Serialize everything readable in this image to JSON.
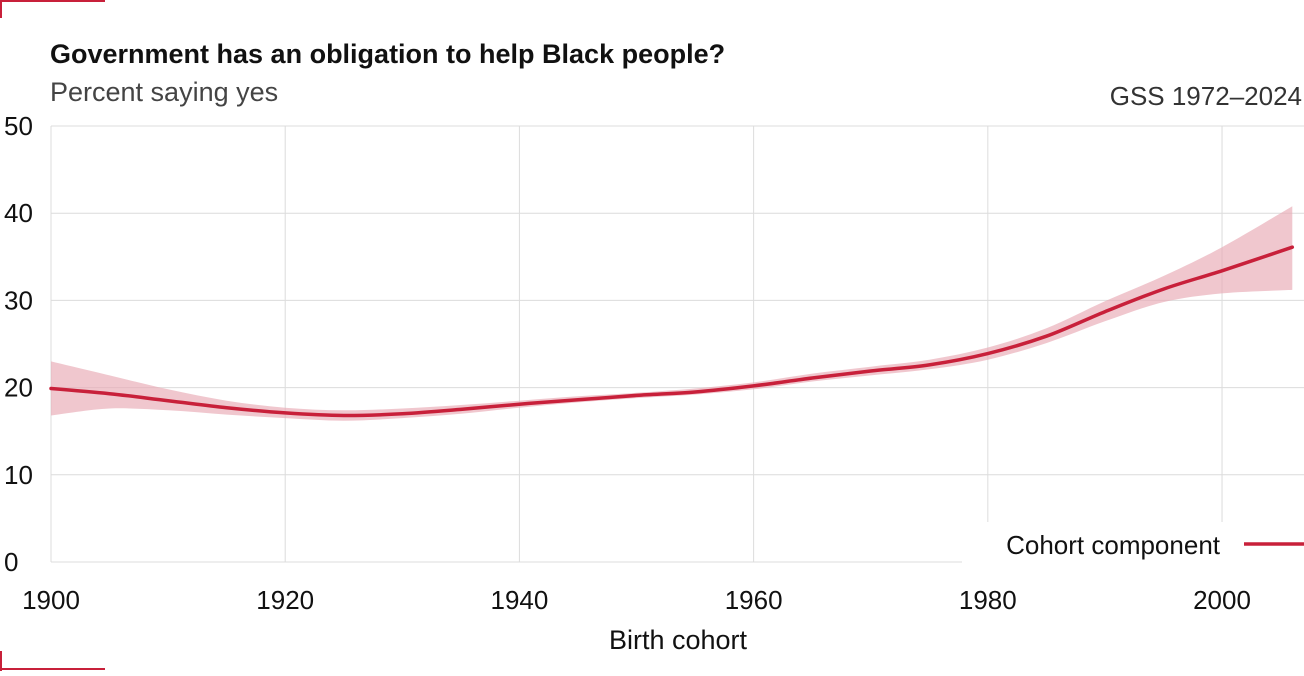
{
  "chart_data": {
    "type": "line",
    "title": "Government has an obligation to help Black people?",
    "subtitle": "Percent saying yes",
    "source": "GSS 1972–2024",
    "xlabel": "Birth cohort",
    "ylabel": "",
    "xlim": [
      1900,
      2007
    ],
    "ylim": [
      0,
      50
    ],
    "x_ticks": [
      1900,
      1920,
      1940,
      1960,
      1980,
      2000
    ],
    "y_ticks": [
      0,
      10,
      20,
      30,
      40,
      50
    ],
    "grid": true,
    "legend_position": "bottom-right",
    "series": [
      {
        "name": "Cohort component",
        "color": "#c8203a",
        "band_color": "#e8a9b3",
        "x": [
          1900,
          1905,
          1910,
          1915,
          1920,
          1925,
          1930,
          1935,
          1940,
          1945,
          1950,
          1955,
          1960,
          1965,
          1970,
          1975,
          1980,
          1985,
          1990,
          1995,
          2000,
          2006
        ],
        "y": [
          19.9,
          19.3,
          18.5,
          17.7,
          17.1,
          16.8,
          17.0,
          17.5,
          18.1,
          18.6,
          19.1,
          19.5,
          20.2,
          21.1,
          21.9,
          22.6,
          23.9,
          25.9,
          28.7,
          31.3,
          33.4,
          36.1
        ],
        "lower": [
          16.8,
          17.6,
          17.4,
          16.9,
          16.5,
          16.2,
          16.5,
          17.0,
          17.7,
          18.3,
          18.8,
          19.2,
          19.8,
          20.7,
          21.4,
          22.1,
          23.2,
          25.1,
          27.6,
          29.8,
          30.8,
          31.2
        ],
        "upper": [
          23.0,
          21.4,
          19.8,
          18.5,
          17.7,
          17.4,
          17.6,
          18.0,
          18.5,
          19.0,
          19.4,
          19.9,
          20.6,
          21.6,
          22.4,
          23.2,
          24.6,
          26.8,
          29.9,
          32.8,
          36.1,
          40.8
        ]
      }
    ]
  }
}
